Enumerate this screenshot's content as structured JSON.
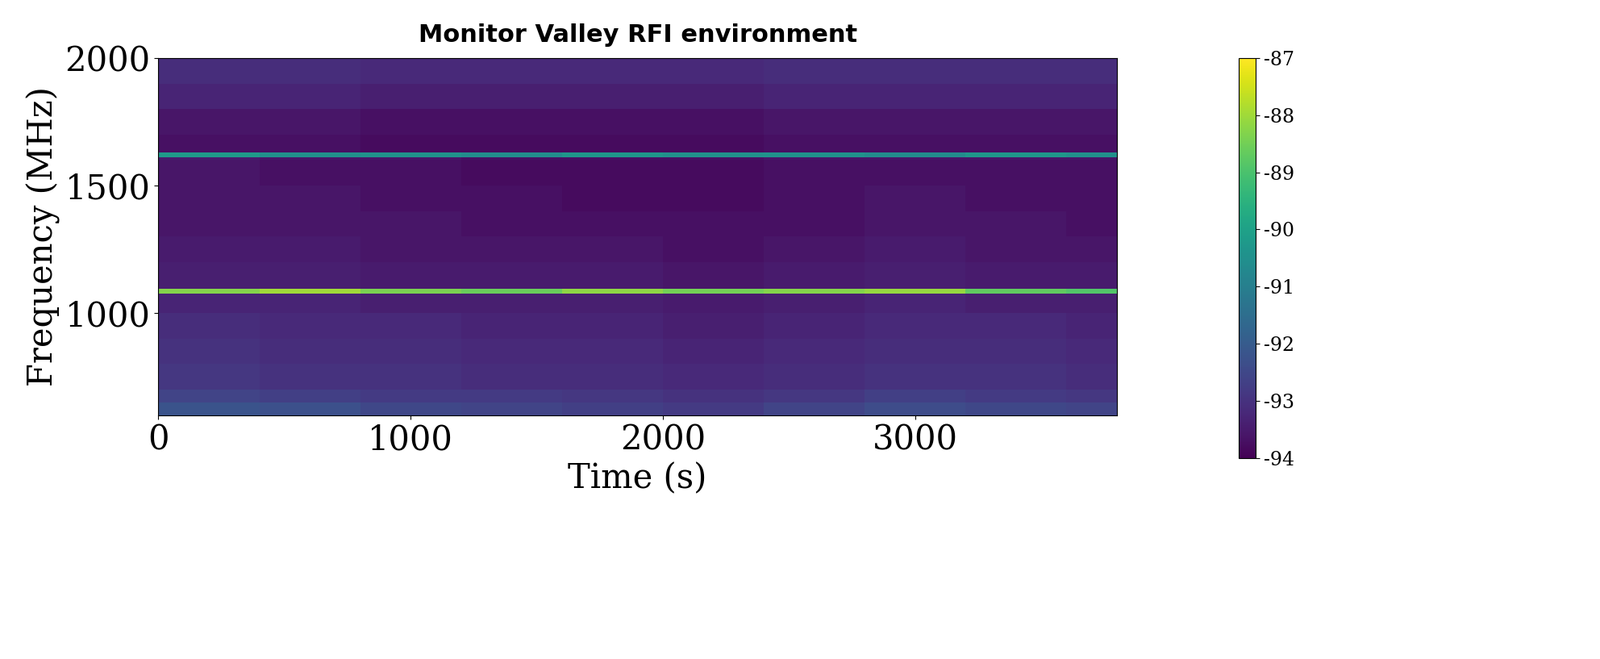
{
  "chart_data": {
    "type": "heatmap",
    "title": "Monitor Valley RFI environment",
    "x_label": "Time (s)",
    "y_label": "Frequency (MHz)",
    "x_edges": [
      0,
      400,
      800,
      1200,
      1600,
      2000,
      2400,
      2800,
      3200,
      3600,
      3800
    ],
    "y_edges": [
      600,
      650,
      700,
      800,
      900,
      1000,
      1075,
      1095,
      1200,
      1300,
      1400,
      1500,
      1600,
      1610,
      1630,
      1700,
      1800,
      1900,
      2000
    ],
    "cells": [
      [
        -92.2,
        -92.3,
        -92.5,
        -92.6,
        -92.7,
        -92.8,
        -92.6,
        -92.4,
        -92.5,
        -92.6
      ],
      [
        -92.6,
        -92.7,
        -92.8,
        -92.8,
        -92.9,
        -93.0,
        -92.9,
        -92.7,
        -92.8,
        -92.9
      ],
      [
        -92.9,
        -93.0,
        -93.0,
        -93.1,
        -93.1,
        -93.2,
        -93.1,
        -93.0,
        -93.0,
        -93.1
      ],
      [
        -93.0,
        -93.1,
        -93.1,
        -93.2,
        -93.2,
        -93.3,
        -93.2,
        -93.1,
        -93.1,
        -93.2
      ],
      [
        -93.1,
        -93.2,
        -93.2,
        -93.3,
        -93.3,
        -93.4,
        -93.3,
        -93.2,
        -93.2,
        -93.3
      ],
      [
        -93.3,
        -93.3,
        -93.4,
        -93.4,
        -93.4,
        -93.5,
        -93.4,
        -93.3,
        -93.4,
        -93.4
      ],
      [
        -88.3,
        -88.0,
        -88.4,
        -88.6,
        -88.2,
        -88.5,
        -88.3,
        -88.1,
        -88.7,
        -88.9
      ],
      [
        -93.4,
        -93.4,
        -93.5,
        -93.5,
        -93.5,
        -93.6,
        -93.5,
        -93.4,
        -93.5,
        -93.5
      ],
      [
        -93.5,
        -93.5,
        -93.6,
        -93.6,
        -93.6,
        -93.7,
        -93.6,
        -93.5,
        -93.6,
        -93.6
      ],
      [
        -93.6,
        -93.6,
        -93.6,
        -93.7,
        -93.7,
        -93.7,
        -93.7,
        -93.6,
        -93.6,
        -93.7
      ],
      [
        -93.6,
        -93.6,
        -93.7,
        -93.7,
        -93.8,
        -93.8,
        -93.7,
        -93.6,
        -93.7,
        -93.7
      ],
      [
        -93.6,
        -93.7,
        -93.7,
        -93.8,
        -93.8,
        -93.8,
        -93.7,
        -93.7,
        -93.7,
        -93.7
      ],
      [
        -93.5,
        -93.6,
        -93.6,
        -93.7,
        -93.7,
        -93.7,
        -93.6,
        -93.6,
        -93.6,
        -93.6
      ],
      [
        -90.2,
        -90.5,
        -90.4,
        -90.6,
        -90.3,
        -90.5,
        -90.4,
        -90.6,
        -90.3,
        -90.5
      ],
      [
        -93.7,
        -93.7,
        -93.8,
        -93.8,
        -93.8,
        -93.8,
        -93.7,
        -93.7,
        -93.7,
        -93.7
      ],
      [
        -93.6,
        -93.6,
        -93.7,
        -93.7,
        -93.7,
        -93.7,
        -93.6,
        -93.6,
        -93.6,
        -93.6
      ],
      [
        -93.3,
        -93.3,
        -93.4,
        -93.4,
        -93.4,
        -93.4,
        -93.3,
        -93.3,
        -93.3,
        -93.3
      ],
      [
        -93.1,
        -93.1,
        -93.2,
        -93.2,
        -93.2,
        -93.2,
        -93.1,
        -93.1,
        -93.1,
        -93.1
      ]
    ],
    "xlim": [
      0,
      3800
    ],
    "ylim": [
      600,
      2000
    ],
    "xticks": [
      0,
      1000,
      2000,
      3000
    ],
    "yticks": [
      1000,
      1500,
      2000
    ],
    "colorbar_range": [
      -94,
      -87
    ],
    "colorbar_ticks": [
      -94,
      -93,
      -92,
      -91,
      -90,
      -89,
      -88,
      -87
    ]
  }
}
